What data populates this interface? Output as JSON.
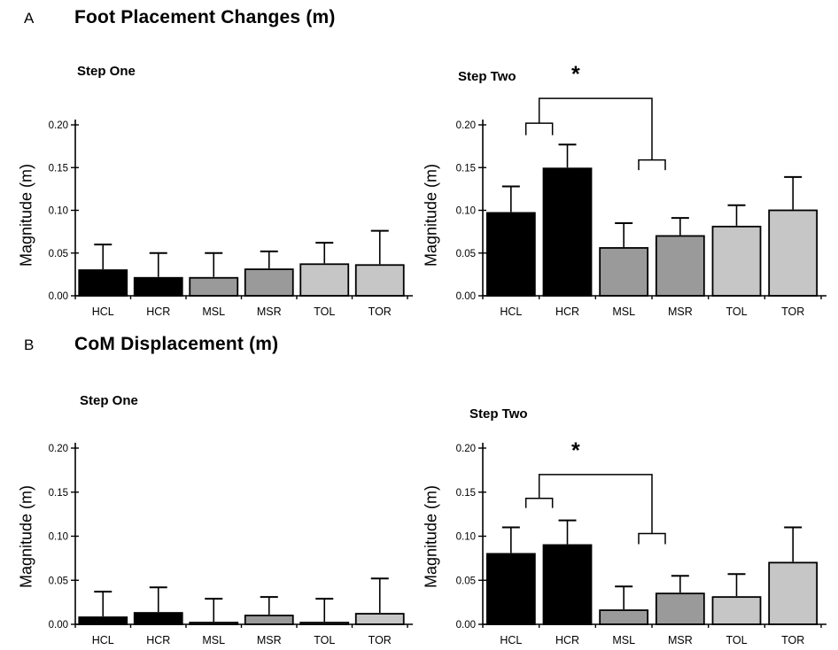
{
  "figure": {
    "background": "#ffffff",
    "panels": [
      {
        "label": "A",
        "title": "Foot Placement Changes (m)"
      },
      {
        "label": "B",
        "title": "CoM Displacement (m)"
      }
    ]
  },
  "colors": {
    "bar_black": "#000000",
    "bar_mid_gray": "#9a9a9a",
    "bar_light_gray": "#c6c6c6",
    "axis": "#000000"
  },
  "chart_data": [
    {
      "type": "bar",
      "panel": "A",
      "title": "Step One",
      "ylabel": "Magnitude (m)",
      "categories": [
        "HCL",
        "HCR",
        "MSL",
        "MSR",
        "TOL",
        "TOR"
      ],
      "values": [
        0.03,
        0.021,
        0.021,
        0.031,
        0.037,
        0.036
      ],
      "error_tops": [
        0.06,
        0.05,
        0.05,
        0.052,
        0.062,
        0.076
      ],
      "ylim": [
        0,
        0.2
      ],
      "ytick_values": [
        0,
        0.05,
        0.1,
        0.15,
        0.2
      ],
      "ytick_labels": [
        "0.00",
        "0.05",
        "0.10",
        "0.15",
        "0.20"
      ],
      "bar_colors": [
        "#000000",
        "#000000",
        "#9a9a9a",
        "#9a9a9a",
        "#c6c6c6",
        "#c6c6c6"
      ],
      "grid": "off",
      "significance": null
    },
    {
      "type": "bar",
      "panel": "A",
      "title": "Step Two",
      "ylabel": "Magnitude (m)",
      "categories": [
        "HCL",
        "HCR",
        "MSL",
        "MSR",
        "TOL",
        "TOR"
      ],
      "values": [
        0.097,
        0.149,
        0.056,
        0.07,
        0.081,
        0.1
      ],
      "error_tops": [
        0.128,
        0.177,
        0.085,
        0.091,
        0.106,
        0.139
      ],
      "ylim": [
        0,
        0.2
      ],
      "ytick_values": [
        0,
        0.05,
        0.1,
        0.15,
        0.2
      ],
      "ytick_labels": [
        "0.00",
        "0.05",
        "0.10",
        "0.15",
        "0.20"
      ],
      "bar_colors": [
        "#000000",
        "#000000",
        "#9a9a9a",
        "#9a9a9a",
        "#c6c6c6",
        "#c6c6c6"
      ],
      "grid": "off",
      "significance": {
        "symbol": "*",
        "groups": [
          [
            "HCL",
            "HCR"
          ],
          [
            "MSL",
            "MSR"
          ]
        ],
        "bar_y": 0.231,
        "left_group_y": 0.202,
        "left_leg_y": 0.188,
        "right_group_y": 0.159,
        "right_leg_y": 0.147
      }
    },
    {
      "type": "bar",
      "panel": "B",
      "title": "Step One",
      "ylabel": "Magnitude (m)",
      "categories": [
        "HCL",
        "HCR",
        "MSL",
        "MSR",
        "TOL",
        "TOR"
      ],
      "values": [
        0.008,
        0.013,
        0.002,
        0.01,
        0.002,
        0.012
      ],
      "error_tops": [
        0.037,
        0.042,
        0.029,
        0.031,
        0.029,
        0.052
      ],
      "ylim": [
        0,
        0.2
      ],
      "ytick_values": [
        0,
        0.05,
        0.1,
        0.15,
        0.2
      ],
      "ytick_labels": [
        "0.00",
        "0.05",
        "0.10",
        "0.15",
        "0.20"
      ],
      "bar_colors": [
        "#000000",
        "#000000",
        "#9a9a9a",
        "#9a9a9a",
        "#c6c6c6",
        "#c6c6c6"
      ],
      "grid": "off",
      "significance": null
    },
    {
      "type": "bar",
      "panel": "B",
      "title": "Step Two",
      "ylabel": "Magnitude (m)",
      "categories": [
        "HCL",
        "HCR",
        "MSL",
        "MSR",
        "TOL",
        "TOR"
      ],
      "values": [
        0.08,
        0.09,
        0.016,
        0.035,
        0.031,
        0.07
      ],
      "error_tops": [
        0.11,
        0.118,
        0.043,
        0.055,
        0.057,
        0.11
      ],
      "ylim": [
        0,
        0.2
      ],
      "ytick_values": [
        0,
        0.05,
        0.1,
        0.15,
        0.2
      ],
      "ytick_labels": [
        "0.00",
        "0.05",
        "0.10",
        "0.15",
        "0.20"
      ],
      "bar_colors": [
        "#000000",
        "#000000",
        "#9a9a9a",
        "#9a9a9a",
        "#c6c6c6",
        "#c6c6c6"
      ],
      "grid": "off",
      "significance": {
        "symbol": "*",
        "groups": [
          [
            "HCL",
            "HCR"
          ],
          [
            "MSL",
            "MSR"
          ]
        ],
        "bar_y": 0.17,
        "left_group_y": 0.143,
        "left_leg_y": 0.132,
        "right_group_y": 0.103,
        "right_leg_y": 0.091
      }
    }
  ]
}
